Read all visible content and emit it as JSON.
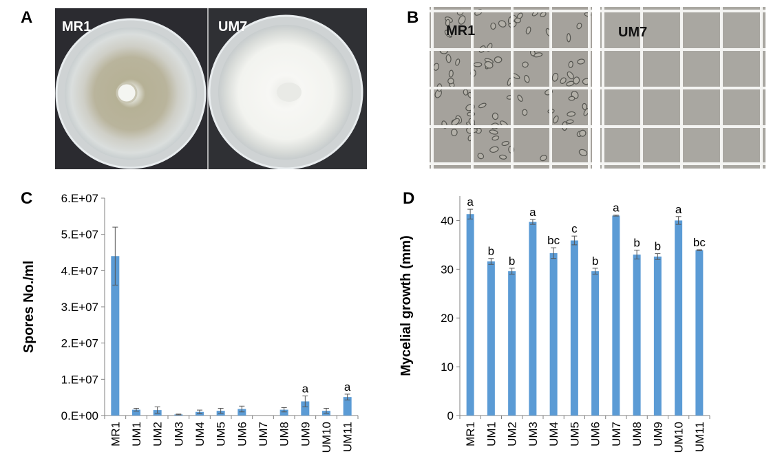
{
  "panels": {
    "A": {
      "letter": "A",
      "left_label": "MR1",
      "right_label": "UM7",
      "colors": {
        "background": "#2b2b30",
        "mr1_ring": "#b9b49c",
        "um7_colony": "#f2f3ef"
      }
    },
    "B": {
      "letter": "B",
      "left_label": "MR1",
      "right_label": "UM7",
      "colors": {
        "field": "#a5a29c",
        "grid": "#f4f4f2"
      }
    },
    "C": {
      "letter": "C"
    },
    "D": {
      "letter": "D"
    }
  },
  "chart_data": [
    {
      "id": "C",
      "type": "bar",
      "bar_color": "#5b9bd5",
      "categories": [
        "MR1",
        "UM1",
        "UM2",
        "UM3",
        "UM4",
        "UM5",
        "UM6",
        "UM7",
        "UM8",
        "UM9",
        "UM10",
        "UM11"
      ],
      "values": [
        44000000,
        1600000,
        1500000,
        300000,
        1000000,
        1300000,
        1800000,
        0,
        1600000,
        3900000,
        1300000,
        5100000
      ],
      "errors": [
        8000000,
        400000,
        900000,
        100000,
        500000,
        700000,
        800000,
        0,
        600000,
        1500000,
        700000,
        800000
      ],
      "significance": [
        "",
        "",
        "",
        "",
        "",
        "",
        "",
        "",
        "",
        "a",
        "",
        "a"
      ],
      "ylabel": "Spores No./ml",
      "ylim": [
        0,
        60000000
      ],
      "yticks": [
        0,
        10000000,
        20000000,
        30000000,
        40000000,
        50000000,
        60000000
      ],
      "ytick_labels": [
        "0.E+00",
        "1.E+07",
        "2.E+07",
        "3.E+07",
        "4.E+07",
        "5.E+07",
        "6.E+07"
      ]
    },
    {
      "id": "D",
      "type": "bar",
      "bar_color": "#5b9bd5",
      "categories": [
        "MR1",
        "UM1",
        "UM2",
        "UM3",
        "UM4",
        "UM5",
        "UM6",
        "UM7",
        "UM8",
        "UM9",
        "UM10",
        "UM11"
      ],
      "values": [
        41.3,
        31.6,
        29.6,
        39.7,
        33.3,
        35.9,
        29.6,
        41.0,
        33.0,
        32.6,
        40.0,
        33.9
      ],
      "errors": [
        1.0,
        0.6,
        0.6,
        0.5,
        1.1,
        0.9,
        0.6,
        0.1,
        0.9,
        0.6,
        0.8,
        0.1
      ],
      "significance": [
        "a",
        "b",
        "b",
        "a",
        "bc",
        "c",
        "b",
        "a",
        "b",
        "b",
        "a",
        "bc"
      ],
      "ylabel": "Mycelial growth (mm)",
      "ylim": [
        0,
        45
      ],
      "yticks": [
        0,
        10,
        20,
        30,
        40
      ],
      "ytick_labels": [
        "0",
        "10",
        "20",
        "30",
        "40"
      ]
    }
  ]
}
